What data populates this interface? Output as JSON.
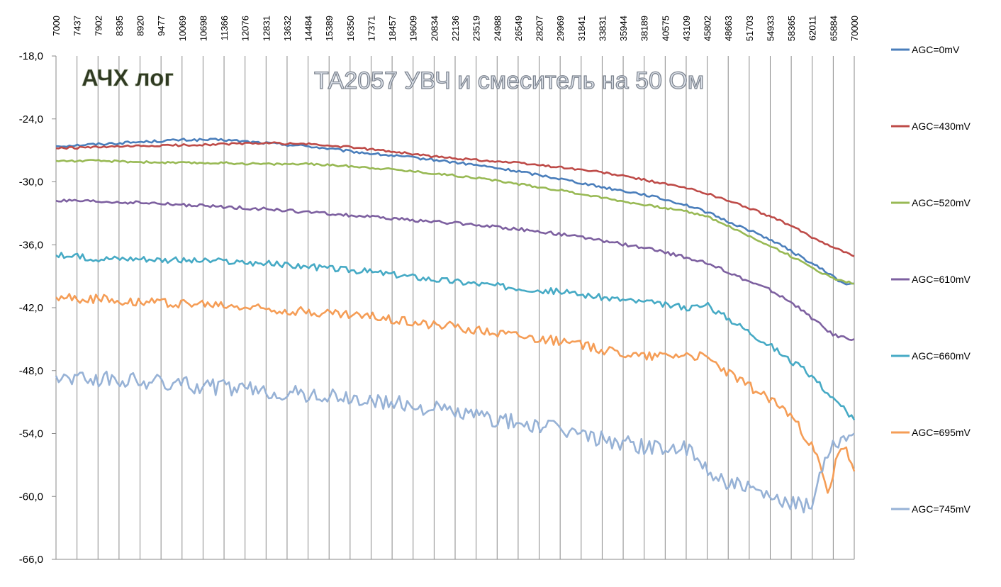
{
  "chart_data": {
    "type": "line",
    "title": "ТА2057 УВЧ и смеситель на 50 Ом",
    "subtitle": "АЧХ лог",
    "x_tick_labels": [
      "7000",
      "7437",
      "7902",
      "8395",
      "8920",
      "9477",
      "10069",
      "10698",
      "11366",
      "12076",
      "12831",
      "13632",
      "14484",
      "15389",
      "16350",
      "17371",
      "18457",
      "19609",
      "20834",
      "22136",
      "23519",
      "24988",
      "26549",
      "28207",
      "29969",
      "31841",
      "33831",
      "35944",
      "38189",
      "40575",
      "43109",
      "45802",
      "48663",
      "51703",
      "54933",
      "58365",
      "62011",
      "65884",
      "70000"
    ],
    "x_scale": "log",
    "xlim": [
      7000,
      70000
    ],
    "y_tick_labels": [
      "-18,0",
      "-24,0",
      "-30,0",
      "-36,0",
      "-42,0",
      "-48,0",
      "-54,0",
      "-60,0",
      "-66,0"
    ],
    "ylim": [
      -66,
      -18
    ],
    "grid": "vertical",
    "legend": "right",
    "series": [
      {
        "name": "AGC=0mV",
        "color": "#4a7ebb",
        "x": [
          7000,
          7902,
          8920,
          10069,
          11366,
          12831,
          14484,
          16350,
          18457,
          20834,
          23519,
          26549,
          29969,
          33831,
          38189,
          43109,
          45802,
          48663,
          51703,
          54933,
          58365,
          62011,
          65884,
          68000,
          70000
        ],
        "y": [
          -26.6,
          -26.4,
          -26.2,
          -26.0,
          -26.0,
          -26.3,
          -26.6,
          -27.1,
          -27.5,
          -27.9,
          -28.4,
          -29.0,
          -29.7,
          -30.5,
          -31.2,
          -32.2,
          -32.9,
          -33.8,
          -34.6,
          -35.5,
          -36.6,
          -37.8,
          -39.0,
          -39.8,
          -39.7
        ]
      },
      {
        "name": "AGC=430mV",
        "color": "#be4b48",
        "x": [
          7000,
          7902,
          8920,
          10069,
          11366,
          12831,
          14484,
          16350,
          18457,
          20834,
          23519,
          26549,
          29969,
          33831,
          38189,
          43109,
          45802,
          48663,
          51703,
          54933,
          58365,
          62011,
          65884,
          70000
        ],
        "y": [
          -26.8,
          -26.7,
          -26.6,
          -26.5,
          -26.4,
          -26.3,
          -26.4,
          -26.7,
          -27.1,
          -27.6,
          -27.9,
          -28.2,
          -28.6,
          -29.1,
          -29.8,
          -30.6,
          -31.1,
          -31.8,
          -32.5,
          -33.3,
          -34.2,
          -35.3,
          -36.2,
          -37.1
        ]
      },
      {
        "name": "AGC=520mV",
        "color": "#98b954",
        "x": [
          7000,
          7902,
          8920,
          10069,
          11366,
          12831,
          14484,
          16350,
          18457,
          20834,
          23519,
          26549,
          29969,
          33831,
          38189,
          43109,
          45802,
          48663,
          51703,
          54933,
          58365,
          62011,
          65884,
          70000
        ],
        "y": [
          -28.0,
          -28.0,
          -28.1,
          -28.2,
          -28.2,
          -28.3,
          -28.3,
          -28.5,
          -28.8,
          -29.2,
          -29.6,
          -30.2,
          -30.8,
          -31.5,
          -32.2,
          -32.8,
          -33.3,
          -34.2,
          -35.2,
          -36.1,
          -37.1,
          -38.2,
          -39.2,
          -39.7
        ]
      },
      {
        "name": "AGC=610mV",
        "color": "#7d60a0",
        "x": [
          7000,
          7902,
          8920,
          10069,
          11366,
          12831,
          14484,
          16350,
          18457,
          20834,
          23519,
          26549,
          29969,
          33831,
          38189,
          43109,
          45802,
          48663,
          51703,
          54933,
          58365,
          62011,
          65884,
          70000
        ],
        "y": [
          -31.8,
          -31.9,
          -32.0,
          -32.2,
          -32.4,
          -32.6,
          -32.9,
          -33.2,
          -33.5,
          -33.8,
          -34.1,
          -34.5,
          -35.0,
          -35.6,
          -36.3,
          -37.2,
          -37.8,
          -38.6,
          -39.5,
          -40.3,
          -41.5,
          -43.0,
          -44.6,
          -45.0
        ]
      },
      {
        "name": "AGC=660mV",
        "color": "#46aac5",
        "x": [
          7000,
          7902,
          8920,
          10069,
          11366,
          12831,
          14484,
          16350,
          18457,
          20834,
          23519,
          26549,
          29969,
          33831,
          38189,
          43109,
          45802,
          48663,
          51703,
          54933,
          58365,
          62011,
          65884,
          70000
        ],
        "y": [
          -37.0,
          -37.3,
          -37.3,
          -37.5,
          -37.6,
          -37.8,
          -38.1,
          -38.4,
          -38.8,
          -39.3,
          -39.7,
          -40.1,
          -40.5,
          -41.0,
          -41.5,
          -42.0,
          -41.8,
          -43.0,
          -44.3,
          -45.6,
          -47.1,
          -48.5,
          -50.7,
          -52.7
        ]
      },
      {
        "name": "AGC=695mV",
        "color": "#f59d56",
        "x": [
          7000,
          7902,
          8920,
          10069,
          11366,
          12831,
          14484,
          16350,
          18457,
          20834,
          23519,
          26549,
          29969,
          33831,
          38189,
          43109,
          45802,
          48663,
          51703,
          54933,
          58365,
          62011,
          63500,
          65000,
          66500,
          68000,
          70000
        ],
        "y": [
          -41.0,
          -41.2,
          -41.4,
          -41.6,
          -41.8,
          -42.1,
          -42.4,
          -42.7,
          -43.1,
          -43.6,
          -44.1,
          -44.6,
          -45.2,
          -46.0,
          -46.6,
          -46.4,
          -46.8,
          -48.2,
          -49.5,
          -50.7,
          -52.3,
          -55.3,
          -57.2,
          -60.2,
          -56.0,
          -55.2,
          -57.6
        ]
      },
      {
        "name": "AGC=745mV",
        "color": "#97b2d6",
        "x": [
          7000,
          7902,
          8920,
          10069,
          11366,
          12831,
          14484,
          16350,
          18457,
          20834,
          23519,
          26549,
          29969,
          33831,
          38189,
          43109,
          45802,
          48663,
          51703,
          54933,
          58365,
          62011,
          63500,
          65000,
          66500,
          68000,
          70000
        ],
        "y": [
          -48.5,
          -48.8,
          -49.0,
          -49.3,
          -49.6,
          -50.0,
          -50.3,
          -50.7,
          -51.1,
          -51.6,
          -52.3,
          -53.0,
          -53.6,
          -54.5,
          -55.2,
          -55.5,
          -57.5,
          -58.6,
          -59.4,
          -60.3,
          -60.8,
          -61.0,
          -57.5,
          -55.3,
          -54.7,
          -54.3,
          -54.0
        ]
      }
    ]
  }
}
